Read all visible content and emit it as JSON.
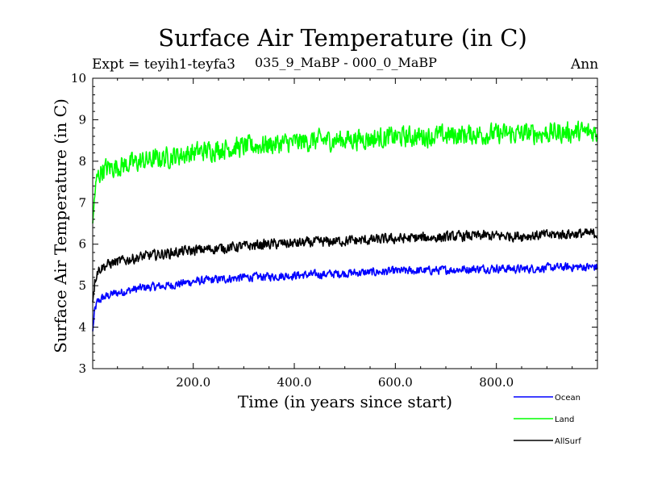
{
  "chart_data": {
    "type": "line",
    "title": "Surface Air Temperature (in C)",
    "subtitle_left": "Expt = teyih1-teyfa3",
    "subtitle_center": "035_9_MaBP - 000_0_MaBP",
    "subtitle_right": "Ann",
    "xlabel": "Time (in years since start)",
    "ylabel": "Surface Air Temperature (in C)",
    "xlim": [
      1,
      1000
    ],
    "ylim": [
      3,
      10
    ],
    "xticks": [
      200,
      400,
      600,
      800
    ],
    "xtick_labels": [
      "200.0",
      "400.0",
      "600.0",
      "800.0"
    ],
    "yticks": [
      3,
      4,
      5,
      6,
      7,
      8,
      9,
      10
    ],
    "ytick_labels": [
      "3",
      "4",
      "5",
      "6",
      "7",
      "8",
      "9",
      "10"
    ],
    "legend_position": "bottom-right, below plot",
    "series": [
      {
        "name": "Ocean",
        "color": "#0000ff",
        "x": [
          1,
          5,
          10,
          20,
          40,
          60,
          80,
          100,
          150,
          200,
          250,
          300,
          350,
          400,
          450,
          500,
          550,
          600,
          650,
          700,
          750,
          800,
          850,
          900,
          950,
          1000
        ],
        "values": [
          3.9,
          4.4,
          4.6,
          4.7,
          4.8,
          4.85,
          4.9,
          4.95,
          5.0,
          5.1,
          5.15,
          5.2,
          5.22,
          5.25,
          5.27,
          5.3,
          5.32,
          5.35,
          5.36,
          5.38,
          5.4,
          5.42,
          5.4,
          5.43,
          5.45,
          5.45
        ]
      },
      {
        "name": "Land",
        "color": "#00ff00",
        "x": [
          1,
          5,
          10,
          20,
          40,
          60,
          80,
          100,
          150,
          200,
          250,
          300,
          350,
          400,
          450,
          500,
          550,
          600,
          650,
          700,
          750,
          800,
          850,
          900,
          950,
          1000
        ],
        "values": [
          6.5,
          7.2,
          7.6,
          7.8,
          7.85,
          7.9,
          7.95,
          8.0,
          8.1,
          8.2,
          8.3,
          8.35,
          8.4,
          8.45,
          8.5,
          8.52,
          8.55,
          8.58,
          8.6,
          8.62,
          8.65,
          8.65,
          8.66,
          8.68,
          8.7,
          8.7
        ]
      },
      {
        "name": "AllSurf",
        "color": "#000000",
        "x": [
          1,
          5,
          10,
          20,
          40,
          60,
          80,
          100,
          150,
          200,
          250,
          300,
          350,
          400,
          450,
          500,
          550,
          600,
          650,
          700,
          750,
          800,
          850,
          900,
          950,
          1000
        ],
        "values": [
          4.6,
          5.1,
          5.35,
          5.45,
          5.55,
          5.6,
          5.65,
          5.7,
          5.78,
          5.85,
          5.9,
          5.95,
          6.0,
          6.02,
          6.05,
          6.08,
          6.1,
          6.13,
          6.15,
          6.17,
          6.2,
          6.2,
          6.2,
          6.22,
          6.25,
          6.25
        ]
      }
    ]
  }
}
